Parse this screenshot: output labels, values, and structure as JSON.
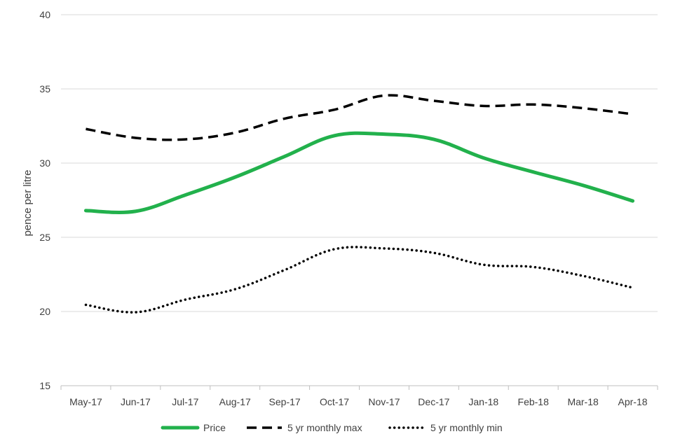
{
  "chart_data": {
    "type": "line",
    "title": "",
    "xlabel": "",
    "ylabel": "pence per litre",
    "ylim": [
      15,
      40
    ],
    "yticks": [
      15,
      20,
      25,
      30,
      35,
      40
    ],
    "grid": true,
    "legend_position": "bottom",
    "categories": [
      "May-17",
      "Jun-17",
      "Jul-17",
      "Aug-17",
      "Sep-17",
      "Oct-17",
      "Nov-17",
      "Dec-17",
      "Jan-18",
      "Feb-18",
      "Mar-18",
      "Apr-18"
    ],
    "series": [
      {
        "name": "Price",
        "style": "solid",
        "color": "#22b14c",
        "values": [
          26.8,
          26.75,
          27.85,
          29.05,
          30.45,
          31.85,
          31.95,
          31.6,
          30.35,
          29.4,
          28.5,
          27.45
        ]
      },
      {
        "name": "5 yr monthly max",
        "style": "dashed",
        "color": "#000000",
        "values": [
          32.3,
          31.7,
          31.6,
          32.05,
          33.0,
          33.6,
          34.55,
          34.2,
          33.85,
          33.95,
          33.7,
          33.3
        ]
      },
      {
        "name": "5 yr monthly min",
        "style": "dotted",
        "color": "#000000",
        "values": [
          20.45,
          19.95,
          20.8,
          21.5,
          22.8,
          24.2,
          24.25,
          23.95,
          23.15,
          23.0,
          22.4,
          21.6
        ]
      }
    ]
  }
}
